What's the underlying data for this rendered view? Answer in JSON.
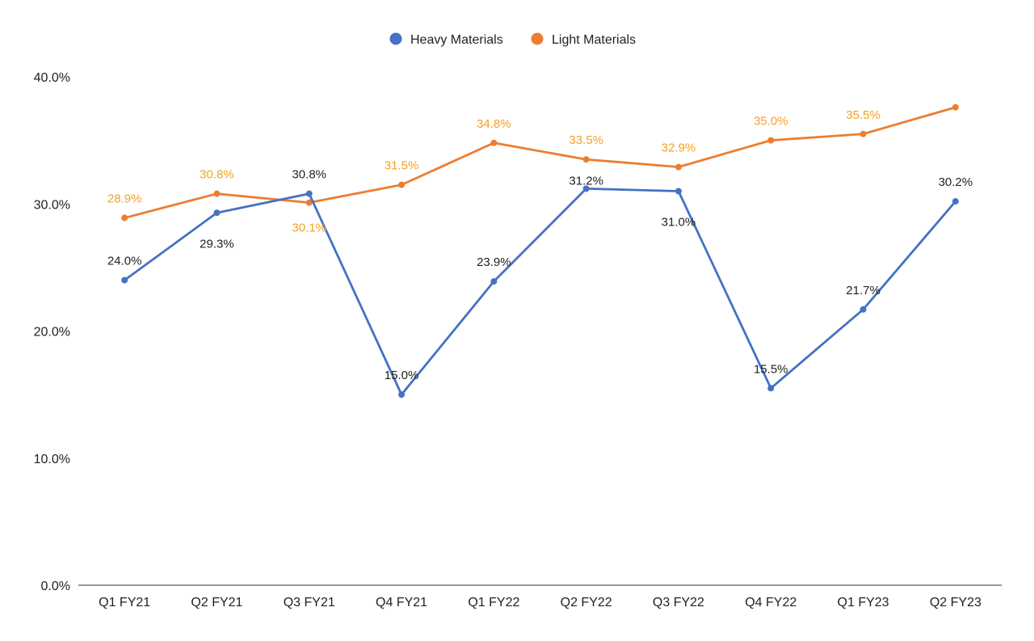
{
  "chart_data": {
    "type": "line",
    "categories": [
      "Q1 FY21",
      "Q2 FY21",
      "Q3 FY21",
      "Q4 FY21",
      "Q1 FY22",
      "Q2 FY22",
      "Q3 FY22",
      "Q4 FY22",
      "Q1 FY23",
      "Q2 FY23"
    ],
    "series": [
      {
        "name": "Heavy Materials",
        "color": "#4472C4",
        "label_color": "#222222",
        "values": [
          24.0,
          29.3,
          30.8,
          15.0,
          23.9,
          31.2,
          31.0,
          15.5,
          21.7,
          30.2
        ],
        "labels": [
          "24.0%",
          "29.3%",
          "30.8%",
          "15.0%",
          "23.9%",
          "31.2%",
          "31.0%",
          "15.5%",
          "21.7%",
          "30.2%"
        ]
      },
      {
        "name": "Light Materials",
        "color": "#ED7D31",
        "label_color": "#F4A020",
        "values": [
          28.9,
          30.8,
          30.1,
          31.5,
          34.8,
          33.5,
          32.9,
          35.0,
          35.5,
          37.6
        ],
        "labels": [
          "28.9%",
          "30.8%",
          "30.1%",
          "31.5%",
          "34.8%",
          "33.5%",
          "32.9%",
          "35.0%",
          "35.5%",
          ""
        ]
      }
    ],
    "ylim": [
      0,
      40
    ],
    "yticks": [
      0,
      10,
      20,
      30,
      40
    ],
    "ytick_labels": [
      "0.0%",
      "10.0%",
      "20.0%",
      "30.0%",
      "40.0%"
    ],
    "title": "",
    "xlabel": "",
    "ylabel": "",
    "grid": false,
    "legend_position": "top-center"
  }
}
